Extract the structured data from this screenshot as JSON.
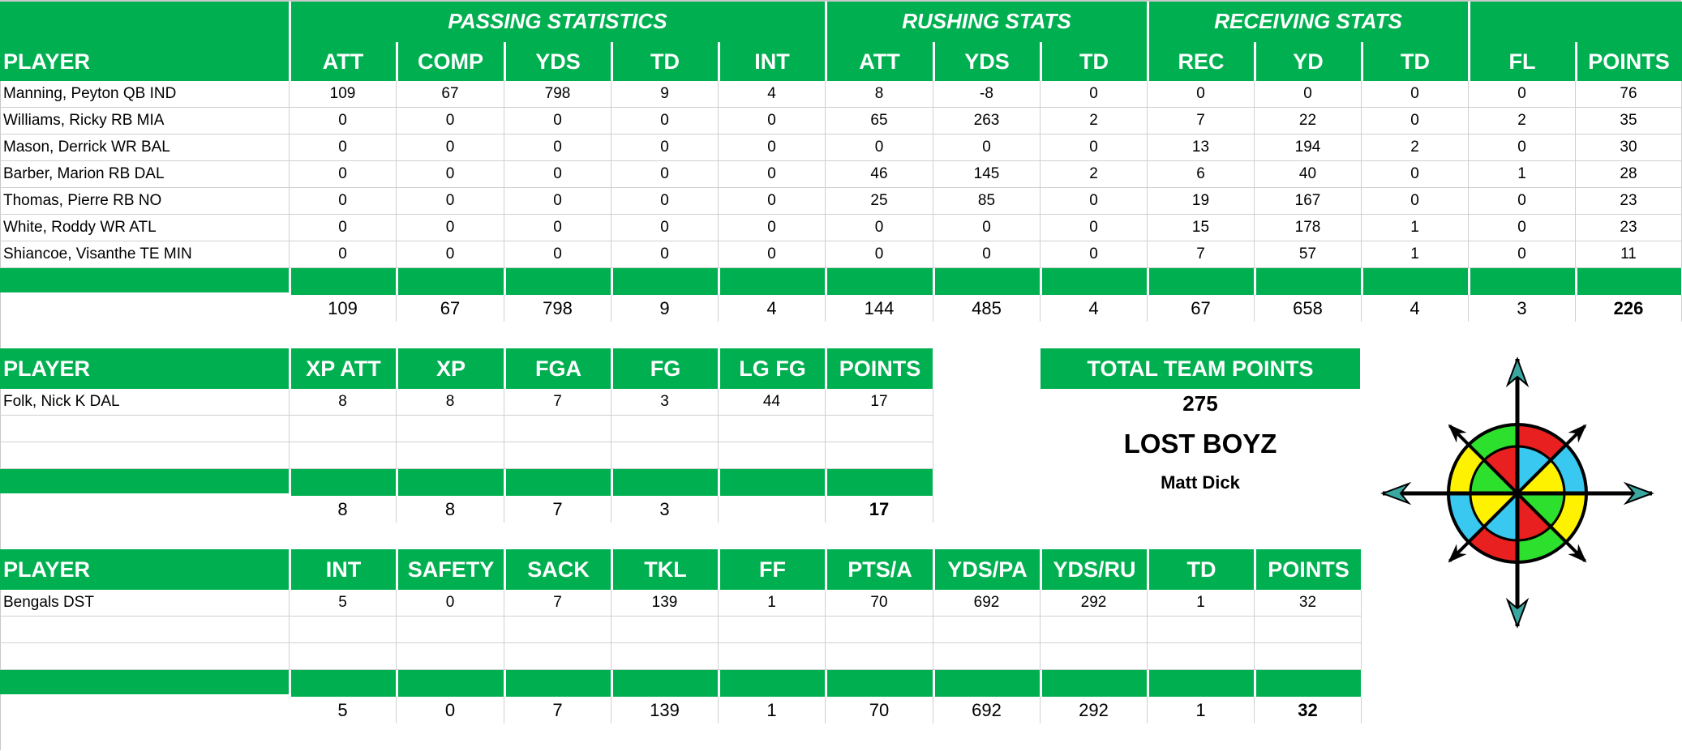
{
  "colors": {
    "header_green": "#00B050",
    "grid": "#d0d0d0"
  },
  "offense": {
    "groups": [
      {
        "label": "PASSING STATISTICS",
        "span": [
          1,
          5
        ]
      },
      {
        "label": "RUSHING STATS",
        "span": [
          6,
          8
        ]
      },
      {
        "label": "RECEIVING STATS",
        "span": [
          9,
          11
        ]
      },
      {
        "label": "",
        "span": [
          12,
          13
        ]
      }
    ],
    "columns": [
      "PLAYER",
      "ATT",
      "COMP",
      "YDS",
      "TD",
      "INT",
      "ATT",
      "YDS",
      "TD",
      "REC",
      "YD",
      "TD",
      "FL",
      "POINTS"
    ],
    "rows": [
      [
        "Manning, Peyton QB IND",
        "109",
        "67",
        "798",
        "9",
        "4",
        "8",
        "-8",
        "0",
        "0",
        "0",
        "0",
        "0",
        "76"
      ],
      [
        "Williams, Ricky RB MIA",
        "0",
        "0",
        "0",
        "0",
        "0",
        "65",
        "263",
        "2",
        "7",
        "22",
        "0",
        "2",
        "35"
      ],
      [
        "Mason, Derrick WR BAL",
        "0",
        "0",
        "0",
        "0",
        "0",
        "0",
        "0",
        "0",
        "13",
        "194",
        "2",
        "0",
        "30"
      ],
      [
        "Barber, Marion RB DAL",
        "0",
        "0",
        "0",
        "0",
        "0",
        "46",
        "145",
        "2",
        "6",
        "40",
        "0",
        "1",
        "28"
      ],
      [
        "Thomas, Pierre RB NO",
        "0",
        "0",
        "0",
        "0",
        "0",
        "25",
        "85",
        "0",
        "19",
        "167",
        "0",
        "0",
        "23"
      ],
      [
        "White, Roddy WR ATL",
        "0",
        "0",
        "0",
        "0",
        "0",
        "0",
        "0",
        "0",
        "15",
        "178",
        "1",
        "0",
        "23"
      ],
      [
        "Shiancoe, Visanthe TE MIN",
        "0",
        "0",
        "0",
        "0",
        "0",
        "0",
        "0",
        "0",
        "7",
        "57",
        "1",
        "0",
        "11"
      ]
    ],
    "totals": [
      "",
      "109",
      "67",
      "798",
      "9",
      "4",
      "144",
      "485",
      "4",
      "67",
      "658",
      "4",
      "3",
      "226"
    ]
  },
  "kicker": {
    "columns": [
      "PLAYER",
      "XP ATT",
      "XP",
      "FGA",
      "FG",
      "LG FG",
      "POINTS"
    ],
    "rows": [
      [
        "Folk, Nick K DAL",
        "8",
        "8",
        "7",
        "3",
        "44",
        "17"
      ],
      [
        "",
        "",
        "",
        "",
        "",
        "",
        ""
      ],
      [
        "",
        "",
        "",
        "",
        "",
        "",
        ""
      ]
    ],
    "totals": [
      "",
      "8",
      "8",
      "7",
      "3",
      "",
      "17"
    ]
  },
  "defense": {
    "columns": [
      "PLAYER",
      "INT",
      "SAFETY",
      "SACK",
      "TKL",
      "FF",
      "PTS/A",
      "YDS/PA",
      "YDS/RU",
      "TD",
      "POINTS"
    ],
    "rows": [
      [
        "Bengals DST",
        "5",
        "0",
        "7",
        "139",
        "1",
        "70",
        "692",
        "292",
        "1",
        "32"
      ],
      [
        "",
        "",
        "",
        "",
        "",
        "",
        "",
        "",
        "",
        "",
        ""
      ],
      [
        "",
        "",
        "",
        "",
        "",
        "",
        "",
        "",
        "",
        "",
        ""
      ]
    ],
    "totals": [
      "",
      "5",
      "0",
      "7",
      "139",
      "1",
      "70",
      "692",
      "292",
      "1",
      "32"
    ]
  },
  "team": {
    "total_label": "TOTAL TEAM POINTS",
    "total_points": "275",
    "team_name": "LOST BOYZ",
    "owner": "Matt Dick"
  },
  "logo": {
    "icon": "compass-rose-icon",
    "colors": {
      "red": "#E8201F",
      "green": "#2EE02E",
      "blue": "#38C8F0",
      "yellow": "#FFF200",
      "teal": "#3AA8A0"
    }
  }
}
